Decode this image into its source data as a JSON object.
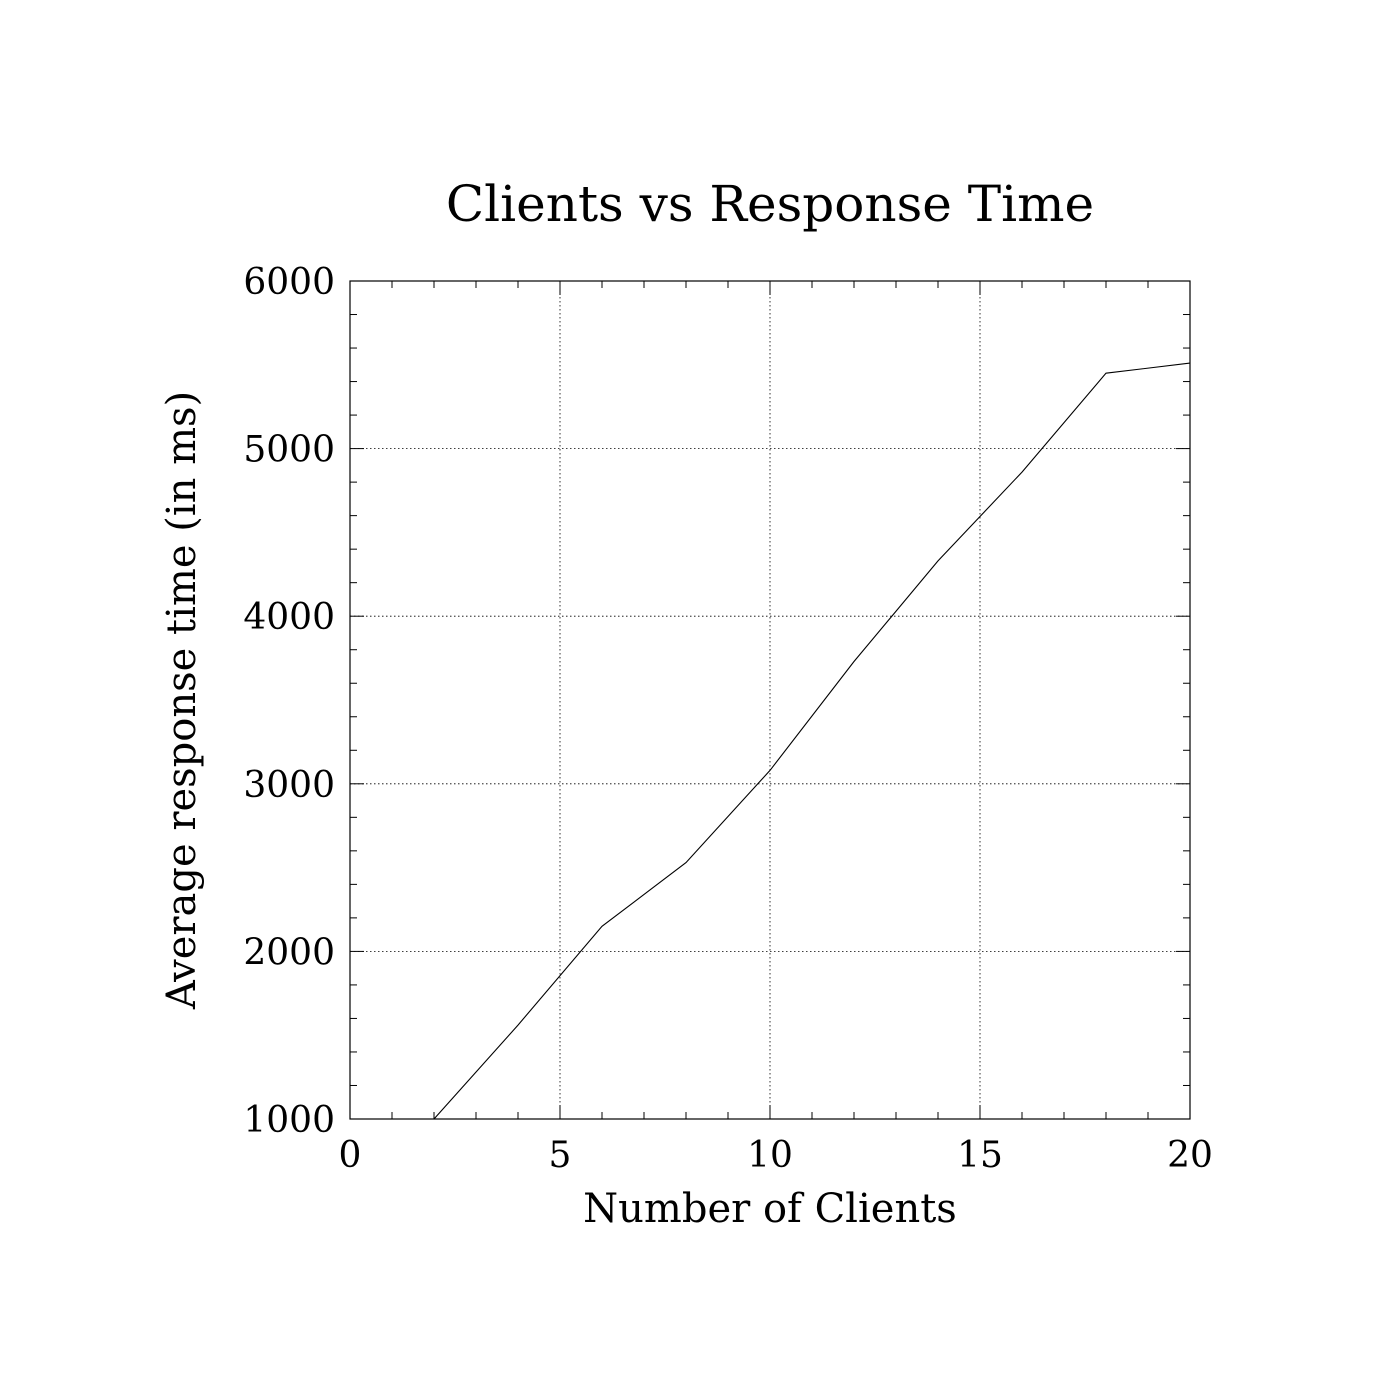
{
  "chart_data": {
    "type": "line",
    "title": "Clients vs Response Time",
    "xlabel": "Number of Clients",
    "ylabel": "Average response time (in ms)",
    "xlim": [
      0,
      20
    ],
    "ylim": [
      1000,
      6000
    ],
    "xticks": [
      "0",
      "5",
      "10",
      "15",
      "20"
    ],
    "yticks": [
      "1000",
      "2000",
      "3000",
      "4000",
      "5000",
      "6000"
    ],
    "grid": true,
    "series": [
      {
        "x": [
          2,
          4,
          6,
          8,
          10,
          12,
          14,
          16,
          18,
          20
        ],
        "y": [
          1000,
          1560,
          2150,
          2530,
          3080,
          3730,
          4330,
          4860,
          5450,
          5510
        ]
      }
    ]
  }
}
